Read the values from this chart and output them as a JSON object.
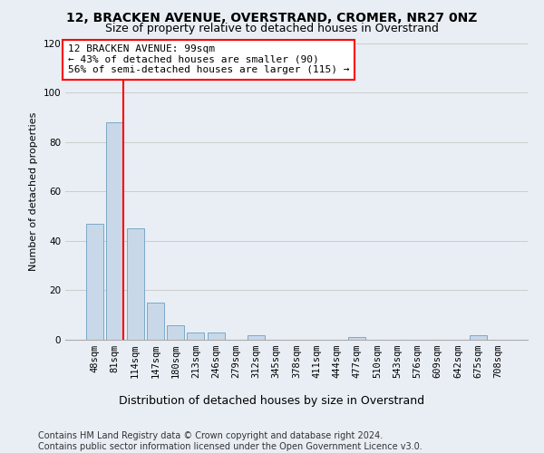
{
  "title1": "12, BRACKEN AVENUE, OVERSTRAND, CROMER, NR27 0NZ",
  "title2": "Size of property relative to detached houses in Overstrand",
  "xlabel": "Distribution of detached houses by size in Overstrand",
  "ylabel": "Number of detached properties",
  "bin_labels": [
    "48sqm",
    "81sqm",
    "114sqm",
    "147sqm",
    "180sqm",
    "213sqm",
    "246sqm",
    "279sqm",
    "312sqm",
    "345sqm",
    "378sqm",
    "411sqm",
    "444sqm",
    "477sqm",
    "510sqm",
    "543sqm",
    "576sqm",
    "609sqm",
    "642sqm",
    "675sqm",
    "708sqm"
  ],
  "bar_values": [
    47,
    88,
    45,
    15,
    6,
    3,
    3,
    0,
    2,
    0,
    0,
    0,
    0,
    1,
    0,
    0,
    0,
    0,
    0,
    2,
    0
  ],
  "bar_color": "#c8d8e8",
  "bar_edge_color": "#7aaac8",
  "red_line_x": 1,
  "annotation_text": "12 BRACKEN AVENUE: 99sqm\n← 43% of detached houses are smaller (90)\n56% of semi-detached houses are larger (115) →",
  "annotation_box_color": "white",
  "annotation_box_edge_color": "red",
  "red_line_color": "red",
  "ylim": [
    0,
    120
  ],
  "yticks": [
    0,
    20,
    40,
    60,
    80,
    100,
    120
  ],
  "grid_color": "#cccccc",
  "background_color": "#e8eef4",
  "footer_text": "Contains HM Land Registry data © Crown copyright and database right 2024.\nContains public sector information licensed under the Open Government Licence v3.0.",
  "title1_fontsize": 10,
  "title2_fontsize": 9,
  "xlabel_fontsize": 9,
  "ylabel_fontsize": 8,
  "tick_fontsize": 7.5,
  "footer_fontsize": 7,
  "annotation_fontsize": 8
}
